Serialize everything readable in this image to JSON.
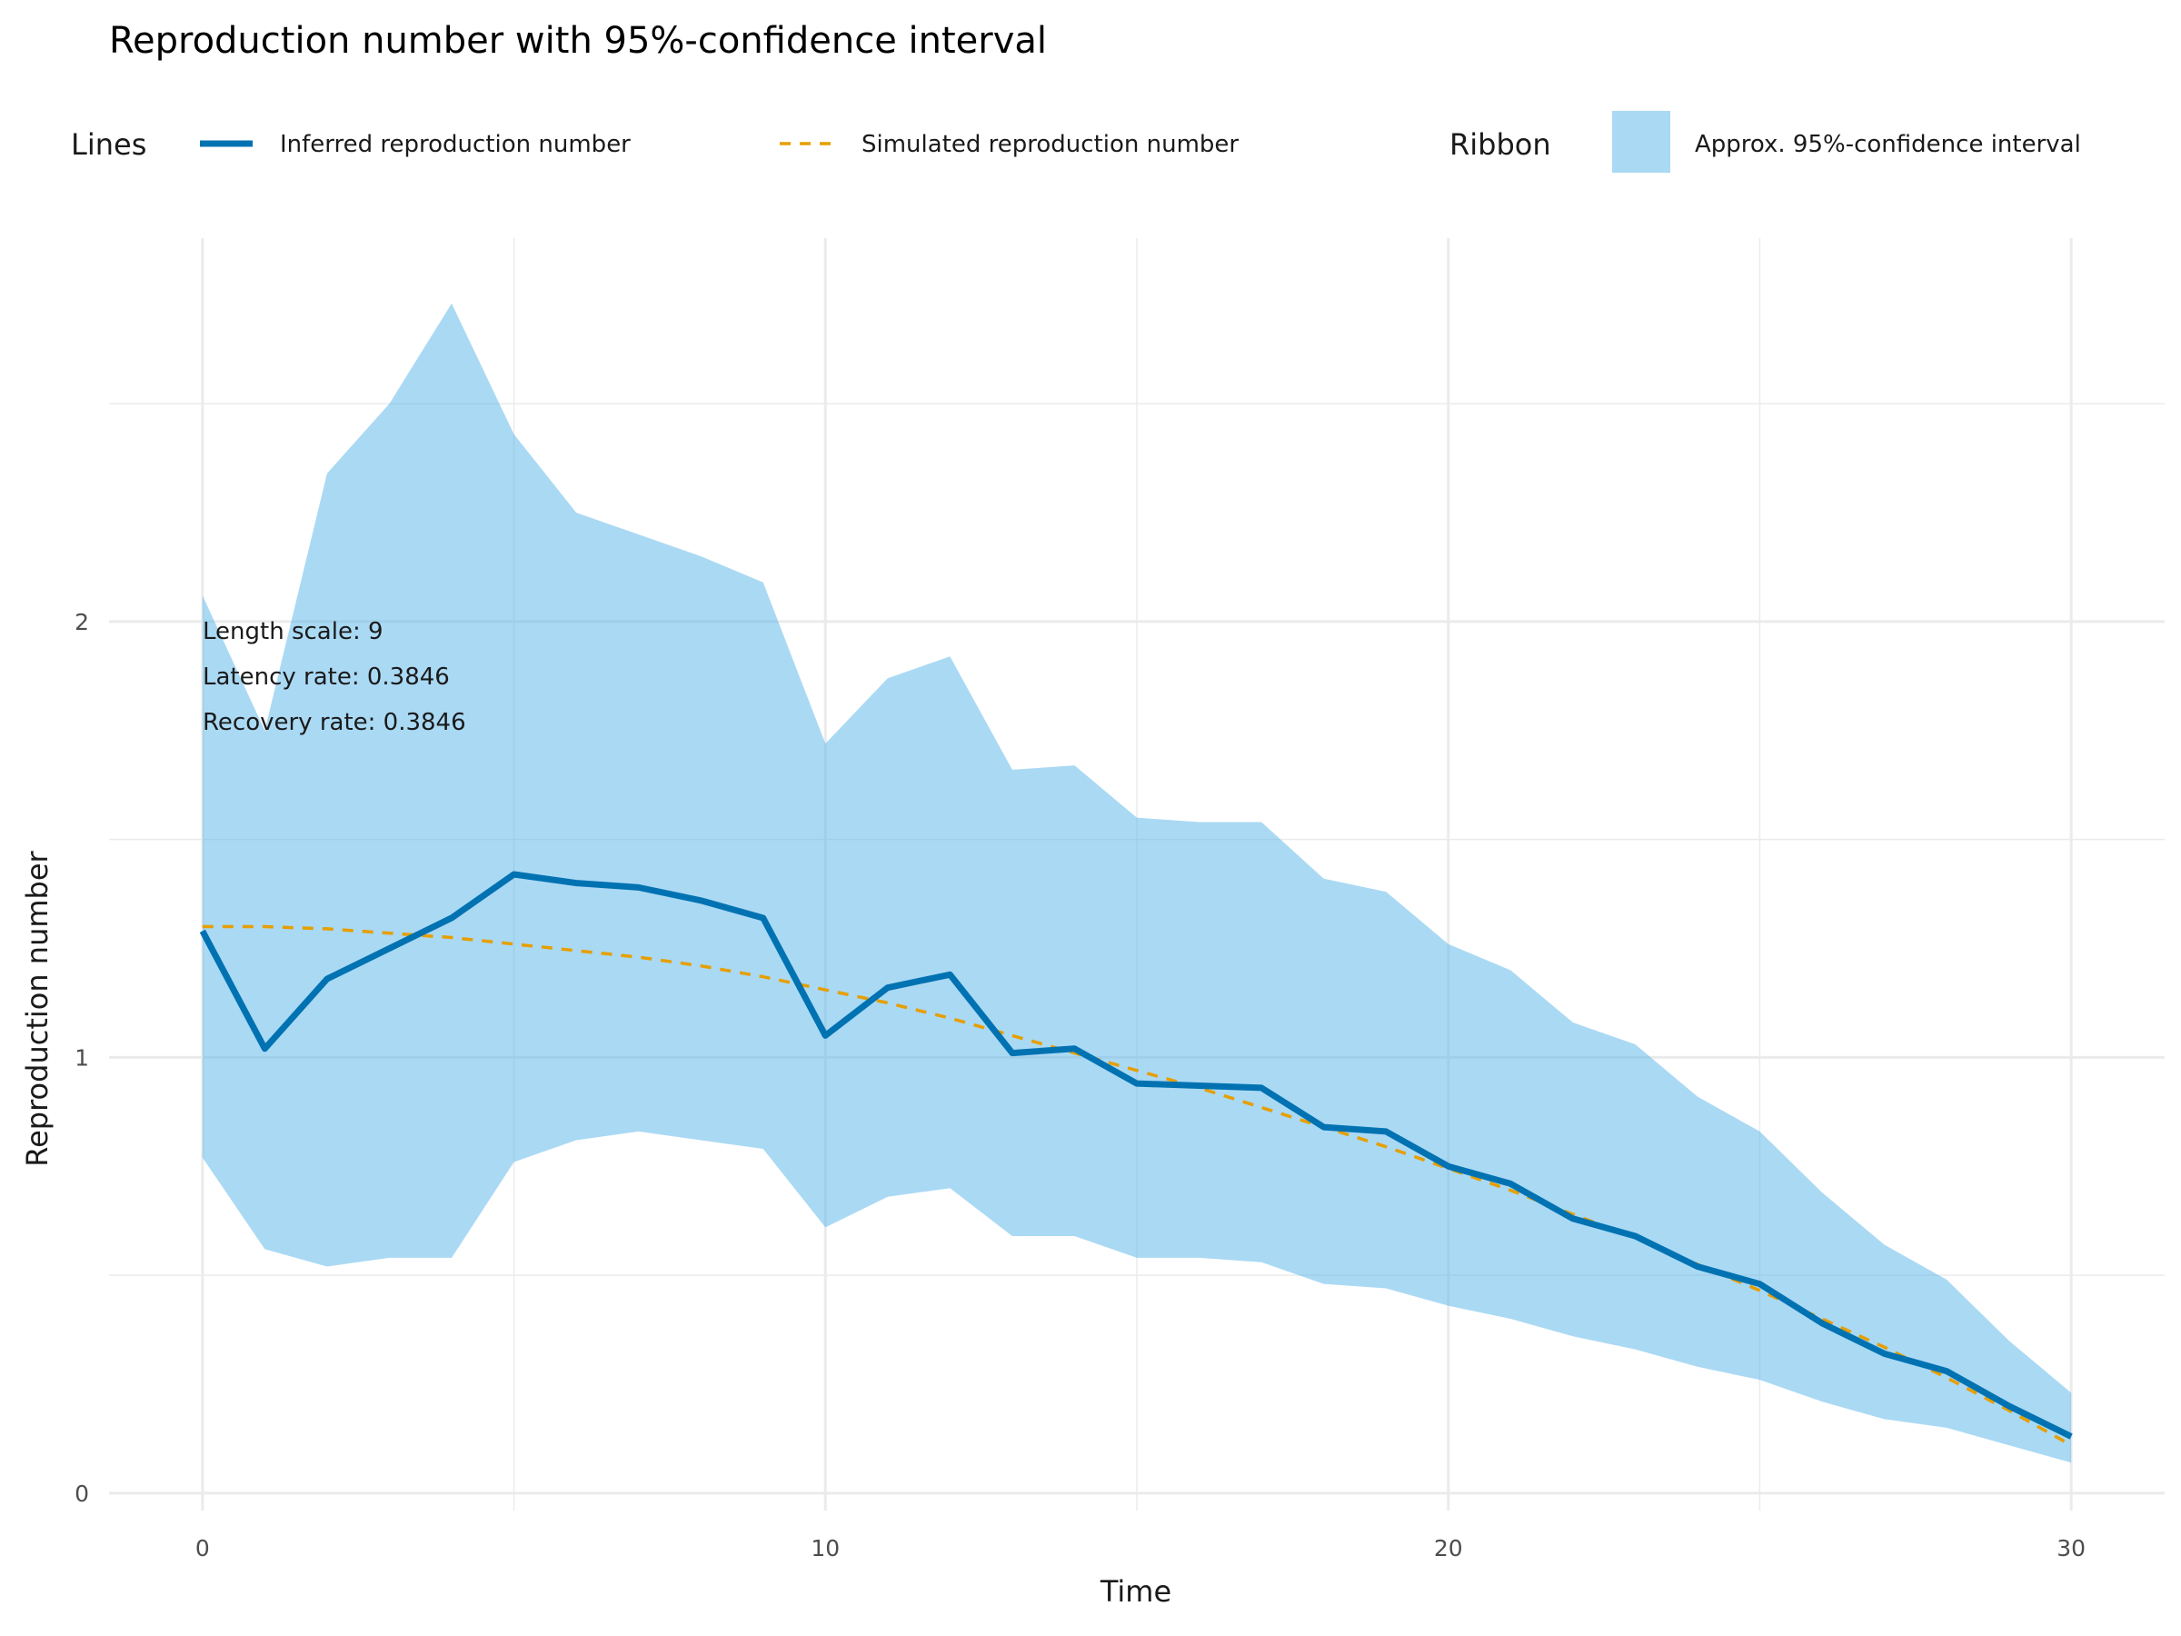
{
  "chart_data": {
    "type": "line",
    "title": "Reproduction number with 95%-confidence interval",
    "xlabel": "Time",
    "ylabel": "Reproduction number",
    "xlim": [
      -1.5,
      31.5
    ],
    "ylim": [
      -0.04,
      2.88
    ],
    "x_ticks": [
      0,
      10,
      20,
      30
    ],
    "y_ticks": [
      0,
      1,
      2
    ],
    "x_minor": [
      5,
      15,
      25
    ],
    "y_minor": [
      0.5,
      1.5,
      2.5
    ],
    "grid": true,
    "legend_position": "top",
    "legend": {
      "lines_title": "Lines",
      "ribbon_title": "Ribbon",
      "ribbon_label": "Approx. 95%-confidence interval"
    },
    "annotation": [
      "Length scale: 9",
      "Latency rate: 0.3846",
      "Recovery rate: 0.3846"
    ],
    "colors": {
      "inferred": "#0072B2",
      "simulated": "#E69F00",
      "ribbon": "#56B4E9",
      "grid": "#EBEBEB"
    },
    "x": [
      0,
      1,
      2,
      3,
      4,
      5,
      6,
      7,
      8,
      9,
      10,
      11,
      12,
      13,
      14,
      15,
      16,
      17,
      18,
      19,
      20,
      21,
      22,
      23,
      24,
      25,
      26,
      27,
      28,
      29,
      30
    ],
    "series": [
      {
        "name": "Inferred reproduction number",
        "style": "solid",
        "values": [
          1.29,
          1.02,
          1.18,
          1.25,
          1.32,
          1.42,
          1.4,
          1.39,
          1.36,
          1.32,
          1.05,
          1.16,
          1.19,
          1.01,
          1.02,
          0.94,
          0.935,
          0.93,
          0.84,
          0.83,
          0.75,
          0.71,
          0.63,
          0.59,
          0.52,
          0.48,
          0.39,
          0.32,
          0.28,
          0.2,
          0.13
        ]
      },
      {
        "name": "Simulated reproduction number",
        "style": "dashed",
        "values": [
          1.3,
          1.3,
          1.295,
          1.285,
          1.275,
          1.26,
          1.245,
          1.23,
          1.21,
          1.185,
          1.155,
          1.125,
          1.09,
          1.05,
          1.01,
          0.97,
          0.93,
          0.885,
          0.84,
          0.795,
          0.745,
          0.695,
          0.64,
          0.585,
          0.525,
          0.465,
          0.4,
          0.335,
          0.265,
          0.19,
          0.11
        ]
      }
    ],
    "ribbon": {
      "name": "Approx. 95%-confidence interval",
      "lower": [
        0.77,
        0.56,
        0.52,
        0.54,
        0.54,
        0.76,
        0.81,
        0.83,
        0.81,
        0.79,
        0.61,
        0.68,
        0.7,
        0.59,
        0.59,
        0.54,
        0.54,
        0.53,
        0.48,
        0.47,
        0.43,
        0.4,
        0.36,
        0.33,
        0.29,
        0.26,
        0.21,
        0.17,
        0.15,
        0.11,
        0.07
      ],
      "upper": [
        2.06,
        1.75,
        2.34,
        2.5,
        2.73,
        2.43,
        2.25,
        2.2,
        2.15,
        2.09,
        1.72,
        1.87,
        1.92,
        1.66,
        1.67,
        1.55,
        1.54,
        1.54,
        1.41,
        1.38,
        1.26,
        1.2,
        1.08,
        1.03,
        0.91,
        0.83,
        0.69,
        0.57,
        0.49,
        0.35,
        0.23
      ]
    }
  }
}
